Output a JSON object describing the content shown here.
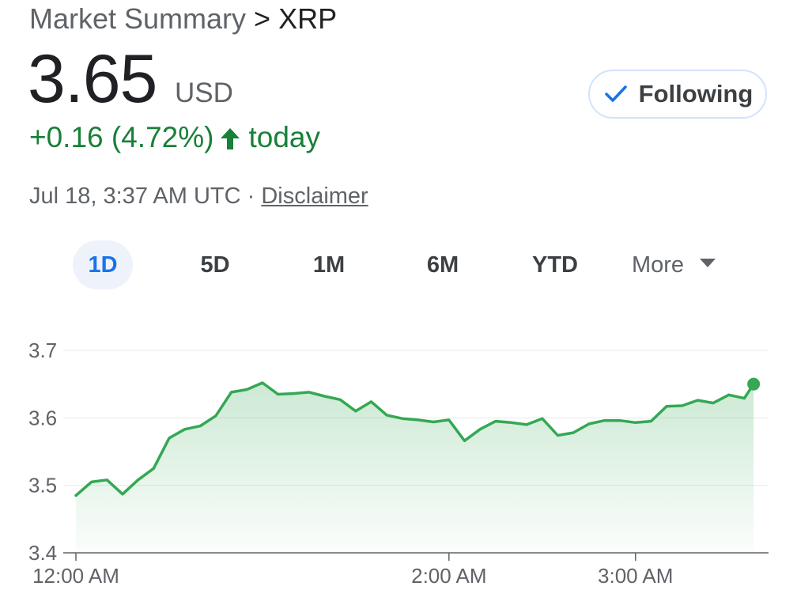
{
  "breadcrumb": {
    "root": "Market Summary",
    "separator": ">",
    "leaf": "XRP"
  },
  "quote": {
    "price": "3.65",
    "currency": "USD",
    "change": "+0.16 (4.72%)",
    "change_direction_icon": "arrow-up-icon",
    "period": "today",
    "timestamp": "Jul 18, 3:37 AM UTC",
    "timestamp_separator": "·",
    "disclaimer_link": "Disclaimer"
  },
  "follow_button": {
    "label": "Following",
    "icon": "check-icon"
  },
  "range_tabs": [
    {
      "label": "1D",
      "active": true
    },
    {
      "label": "5D",
      "active": false
    },
    {
      "label": "1M",
      "active": false
    },
    {
      "label": "6M",
      "active": false
    },
    {
      "label": "YTD",
      "active": false
    },
    {
      "label": "More",
      "active": false
    }
  ],
  "colors": {
    "positive": "#188038",
    "line": "#34a853",
    "accent": "#1a73e8"
  },
  "chart_data": {
    "type": "area",
    "title": "",
    "xlabel": "",
    "ylabel": "",
    "ylim": [
      3.4,
      3.7
    ],
    "yticks": [
      "3.7",
      "3.6",
      "3.5",
      "3.4"
    ],
    "xticks": [
      {
        "label": "12:00 AM",
        "minutes": 0
      },
      {
        "label": "2:00 AM",
        "minutes": 120
      },
      {
        "label": "3:00 AM",
        "minutes": 180
      }
    ],
    "xlim_minutes": [
      0,
      220
    ],
    "grid": true,
    "series": [
      {
        "values": [
          [
            0,
            3.485
          ],
          [
            5,
            3.505
          ],
          [
            10,
            3.508
          ],
          [
            15,
            3.487
          ],
          [
            20,
            3.508
          ],
          [
            25,
            3.525
          ],
          [
            30,
            3.57
          ],
          [
            35,
            3.583
          ],
          [
            40,
            3.588
          ],
          [
            45,
            3.603
          ],
          [
            50,
            3.638
          ],
          [
            55,
            3.642
          ],
          [
            60,
            3.652
          ],
          [
            65,
            3.635
          ],
          [
            70,
            3.636
          ],
          [
            75,
            3.638
          ],
          [
            80,
            3.632
          ],
          [
            85,
            3.627
          ],
          [
            90,
            3.61
          ],
          [
            95,
            3.624
          ],
          [
            100,
            3.604
          ],
          [
            105,
            3.599
          ],
          [
            110,
            3.597
          ],
          [
            115,
            3.594
          ],
          [
            120,
            3.597
          ],
          [
            125,
            3.566
          ],
          [
            130,
            3.583
          ],
          [
            135,
            3.595
          ],
          [
            140,
            3.593
          ],
          [
            145,
            3.59
          ],
          [
            150,
            3.599
          ],
          [
            155,
            3.574
          ],
          [
            160,
            3.578
          ],
          [
            165,
            3.591
          ],
          [
            170,
            3.596
          ],
          [
            175,
            3.596
          ],
          [
            180,
            3.593
          ],
          [
            185,
            3.595
          ],
          [
            190,
            3.617
          ],
          [
            195,
            3.618
          ],
          [
            200,
            3.626
          ],
          [
            205,
            3.622
          ],
          [
            210,
            3.634
          ],
          [
            215,
            3.629
          ],
          [
            218,
            3.65
          ]
        ]
      }
    ]
  }
}
